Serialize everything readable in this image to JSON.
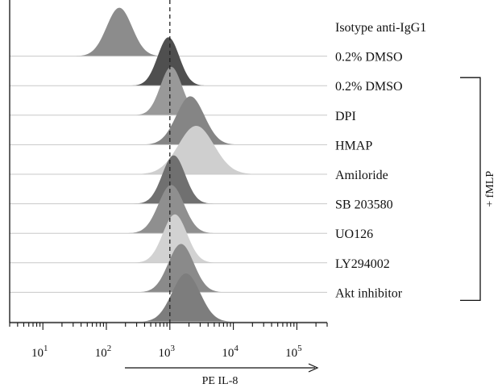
{
  "chart_data": {
    "type": "area",
    "subtype": "stacked-histogram-overlay",
    "x_scale": "log",
    "xlim": [
      3,
      300000
    ],
    "xlabel": "PE IL-8",
    "x_ticks": [
      {
        "base": "10",
        "exp": "1",
        "value": 10
      },
      {
        "base": "10",
        "exp": "2",
        "value": 100
      },
      {
        "base": "10",
        "exp": "3",
        "value": 1000
      },
      {
        "base": "10",
        "exp": "4",
        "value": 10000
      },
      {
        "base": "10",
        "exp": "5",
        "value": 100000
      }
    ],
    "reference_line": {
      "x": 1000,
      "style": "dashed"
    },
    "bracket_label": "+ fMLP",
    "bracket_rows": [
      2,
      9
    ],
    "series": [
      {
        "name": "Isotype anti-IgG1",
        "peak": 160,
        "width": 0.2,
        "color": "#8c8c8c"
      },
      {
        "name": "0.2% DMSO",
        "peak": 950,
        "width": 0.17,
        "color": "#4f4f4f"
      },
      {
        "name": "0.2% DMSO",
        "peak": 1050,
        "width": 0.17,
        "color": "#999999"
      },
      {
        "name": "DPI",
        "peak": 2100,
        "width": 0.22,
        "color": "#858585"
      },
      {
        "name": "HMAP",
        "peak": 2600,
        "width": 0.28,
        "color": "#cfcfcf"
      },
      {
        "name": "Amiloride",
        "peak": 1150,
        "width": 0.18,
        "color": "#707070"
      },
      {
        "name": "SB 203580",
        "peak": 1050,
        "width": 0.2,
        "color": "#8f8f8f"
      },
      {
        "name": "UO126",
        "peak": 1200,
        "width": 0.19,
        "color": "#d2d2d2"
      },
      {
        "name": "LY294002",
        "peak": 1500,
        "width": 0.2,
        "color": "#8a8a8a"
      },
      {
        "name": "Akt inhibitor",
        "peak": 1800,
        "width": 0.22,
        "color": "#7d7d7d"
      }
    ]
  }
}
